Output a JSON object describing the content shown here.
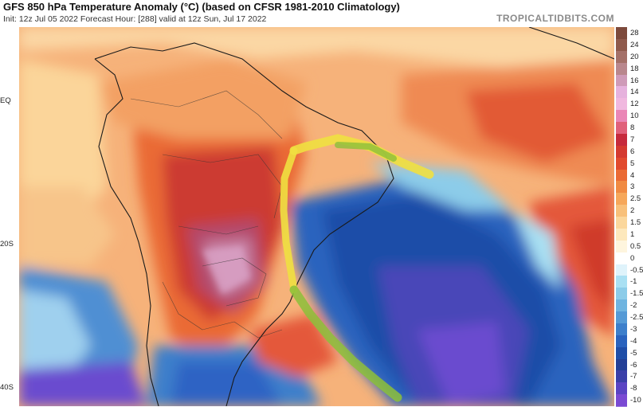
{
  "header": {
    "title": "GFS 850 hPa Temperature Anomaly (°C) (based on CFSR 1981-2010 Climatology)",
    "subtitle": "Init: 12z Jul 05 2022   Forecast Hour: [288]   valid at 12z Sun, Jul 17 2022",
    "brand": "TROPICALTIDBITS.COM"
  },
  "map": {
    "lat_labels": [
      "EQ",
      "20S",
      "40S"
    ],
    "colors": {
      "warm_strong": "#c0392b",
      "warm": "#e4583a",
      "warm_light": "#f4a56a",
      "neutral": "#fde9c0",
      "cold_light": "#9fd0ee",
      "cold": "#2f6fc0",
      "cold_strong": "#6a4bcf",
      "front": "#f0e040"
    }
  },
  "colorbar": {
    "levels": [
      {
        "label": "28",
        "color": "#7d4a3c"
      },
      {
        "label": "24",
        "color": "#8f5a4c"
      },
      {
        "label": "20",
        "color": "#a47068"
      },
      {
        "label": "18",
        "color": "#b9878d"
      },
      {
        "label": "16",
        "color": "#cf9bb8"
      },
      {
        "label": "14",
        "color": "#e6b2dd"
      },
      {
        "label": "12",
        "color": "#f0b8df"
      },
      {
        "label": "10",
        "color": "#ea86b6"
      },
      {
        "label": "8",
        "color": "#e0607a"
      },
      {
        "label": "7",
        "color": "#c62a3c"
      },
      {
        "label": "6",
        "color": "#d43a30"
      },
      {
        "label": "5",
        "color": "#e14a2e"
      },
      {
        "label": "4",
        "color": "#ea6a34"
      },
      {
        "label": "3",
        "color": "#f08a42"
      },
      {
        "label": "2.5",
        "color": "#f6a75a"
      },
      {
        "label": "2",
        "color": "#f8c07a"
      },
      {
        "label": "1.5",
        "color": "#fbd79c"
      },
      {
        "label": "1",
        "color": "#fde8bc"
      },
      {
        "label": "0.5",
        "color": "#fef5de"
      },
      {
        "label": "0",
        "color": "#ffffff"
      },
      {
        "label": "-0.5",
        "color": "#dff3fb"
      },
      {
        "label": "-1",
        "color": "#a9e0f3"
      },
      {
        "label": "-1.5",
        "color": "#8ccce9"
      },
      {
        "label": "-2",
        "color": "#6fb4e0"
      },
      {
        "label": "-2.5",
        "color": "#559ad6"
      },
      {
        "label": "-3",
        "color": "#3d7fcb"
      },
      {
        "label": "-4",
        "color": "#2a63be"
      },
      {
        "label": "-5",
        "color": "#1f4ea8"
      },
      {
        "label": "-6",
        "color": "#233f96"
      },
      {
        "label": "-7",
        "color": "#3a3fa8"
      },
      {
        "label": "-8",
        "color": "#5a44c3"
      },
      {
        "label": "-10",
        "color": "#7a4ad3"
      }
    ]
  }
}
